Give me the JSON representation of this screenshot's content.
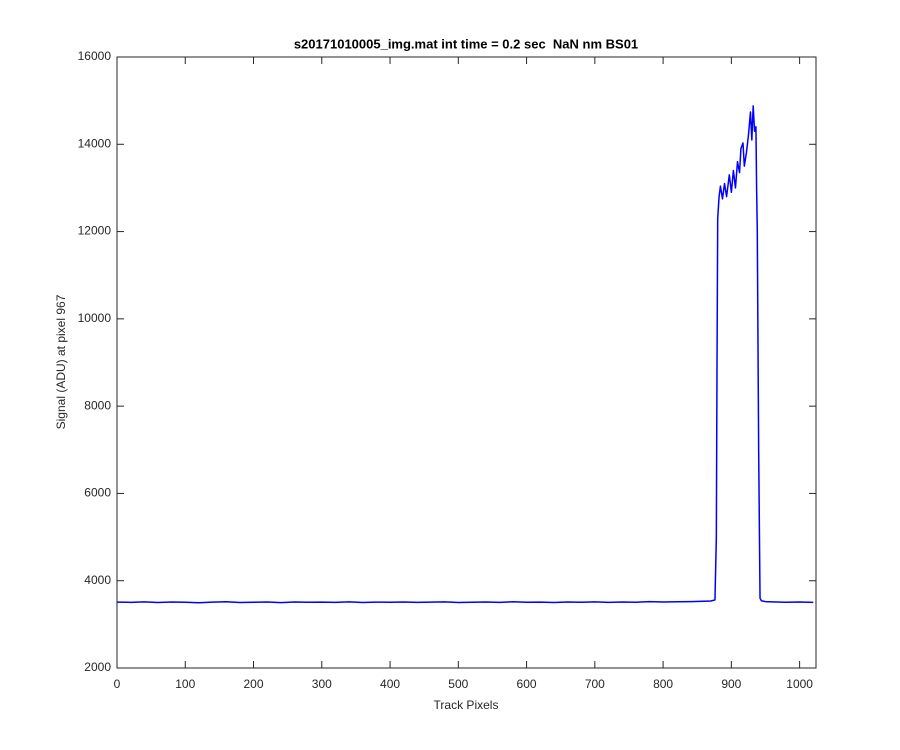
{
  "chart_data": {
    "type": "line",
    "title": "s20171010005_img.mat int time = 0.2 sec  NaN nm BS01",
    "x_label": "Track Pixels",
    "y_label": "Signal (ADU) at pixel 967",
    "x": [
      0,
      20,
      40,
      60,
      80,
      100,
      120,
      140,
      160,
      180,
      200,
      220,
      240,
      260,
      280,
      300,
      320,
      340,
      360,
      380,
      400,
      420,
      440,
      460,
      480,
      500,
      520,
      540,
      560,
      580,
      600,
      620,
      640,
      660,
      680,
      700,
      720,
      740,
      760,
      780,
      800,
      820,
      840,
      860,
      870,
      876,
      878,
      879,
      880,
      882,
      884,
      887,
      890,
      893,
      897,
      900,
      903,
      906,
      909,
      912,
      914,
      917,
      919,
      922,
      925,
      928,
      930,
      932,
      934,
      936,
      937,
      938,
      940,
      942,
      944,
      950,
      960,
      980,
      1000,
      1020
    ],
    "series": [
      {
        "color": "#0000ff",
        "values": [
          3510,
          3505,
          3515,
          3500,
          3512,
          3508,
          3495,
          3510,
          3518,
          3502,
          3507,
          3511,
          3499,
          3513,
          3506,
          3509,
          3504,
          3516,
          3501,
          3510,
          3507,
          3512,
          3503,
          3509,
          3514,
          3500,
          3508,
          3511,
          3505,
          3517,
          3506,
          3510,
          3502,
          3513,
          3508,
          3515,
          3504,
          3511,
          3507,
          3520,
          3512,
          3518,
          3522,
          3530,
          3535,
          3560,
          5000,
          9000,
          12300,
          12800,
          13040,
          12750,
          13100,
          12800,
          13300,
          12900,
          13400,
          13000,
          13600,
          13350,
          13900,
          14030,
          13500,
          13800,
          14200,
          14740,
          14100,
          14880,
          14300,
          14400,
          13000,
          12000,
          7000,
          3600,
          3540,
          3520,
          3515,
          3508,
          3512,
          3505
        ]
      }
    ],
    "xlim": [
      0,
      1024
    ],
    "ylim": [
      2000,
      16000
    ],
    "xticks": [
      0,
      100,
      200,
      300,
      400,
      500,
      600,
      700,
      800,
      900,
      1000
    ],
    "yticks": [
      2000,
      4000,
      6000,
      8000,
      10000,
      12000,
      14000,
      16000
    ]
  }
}
